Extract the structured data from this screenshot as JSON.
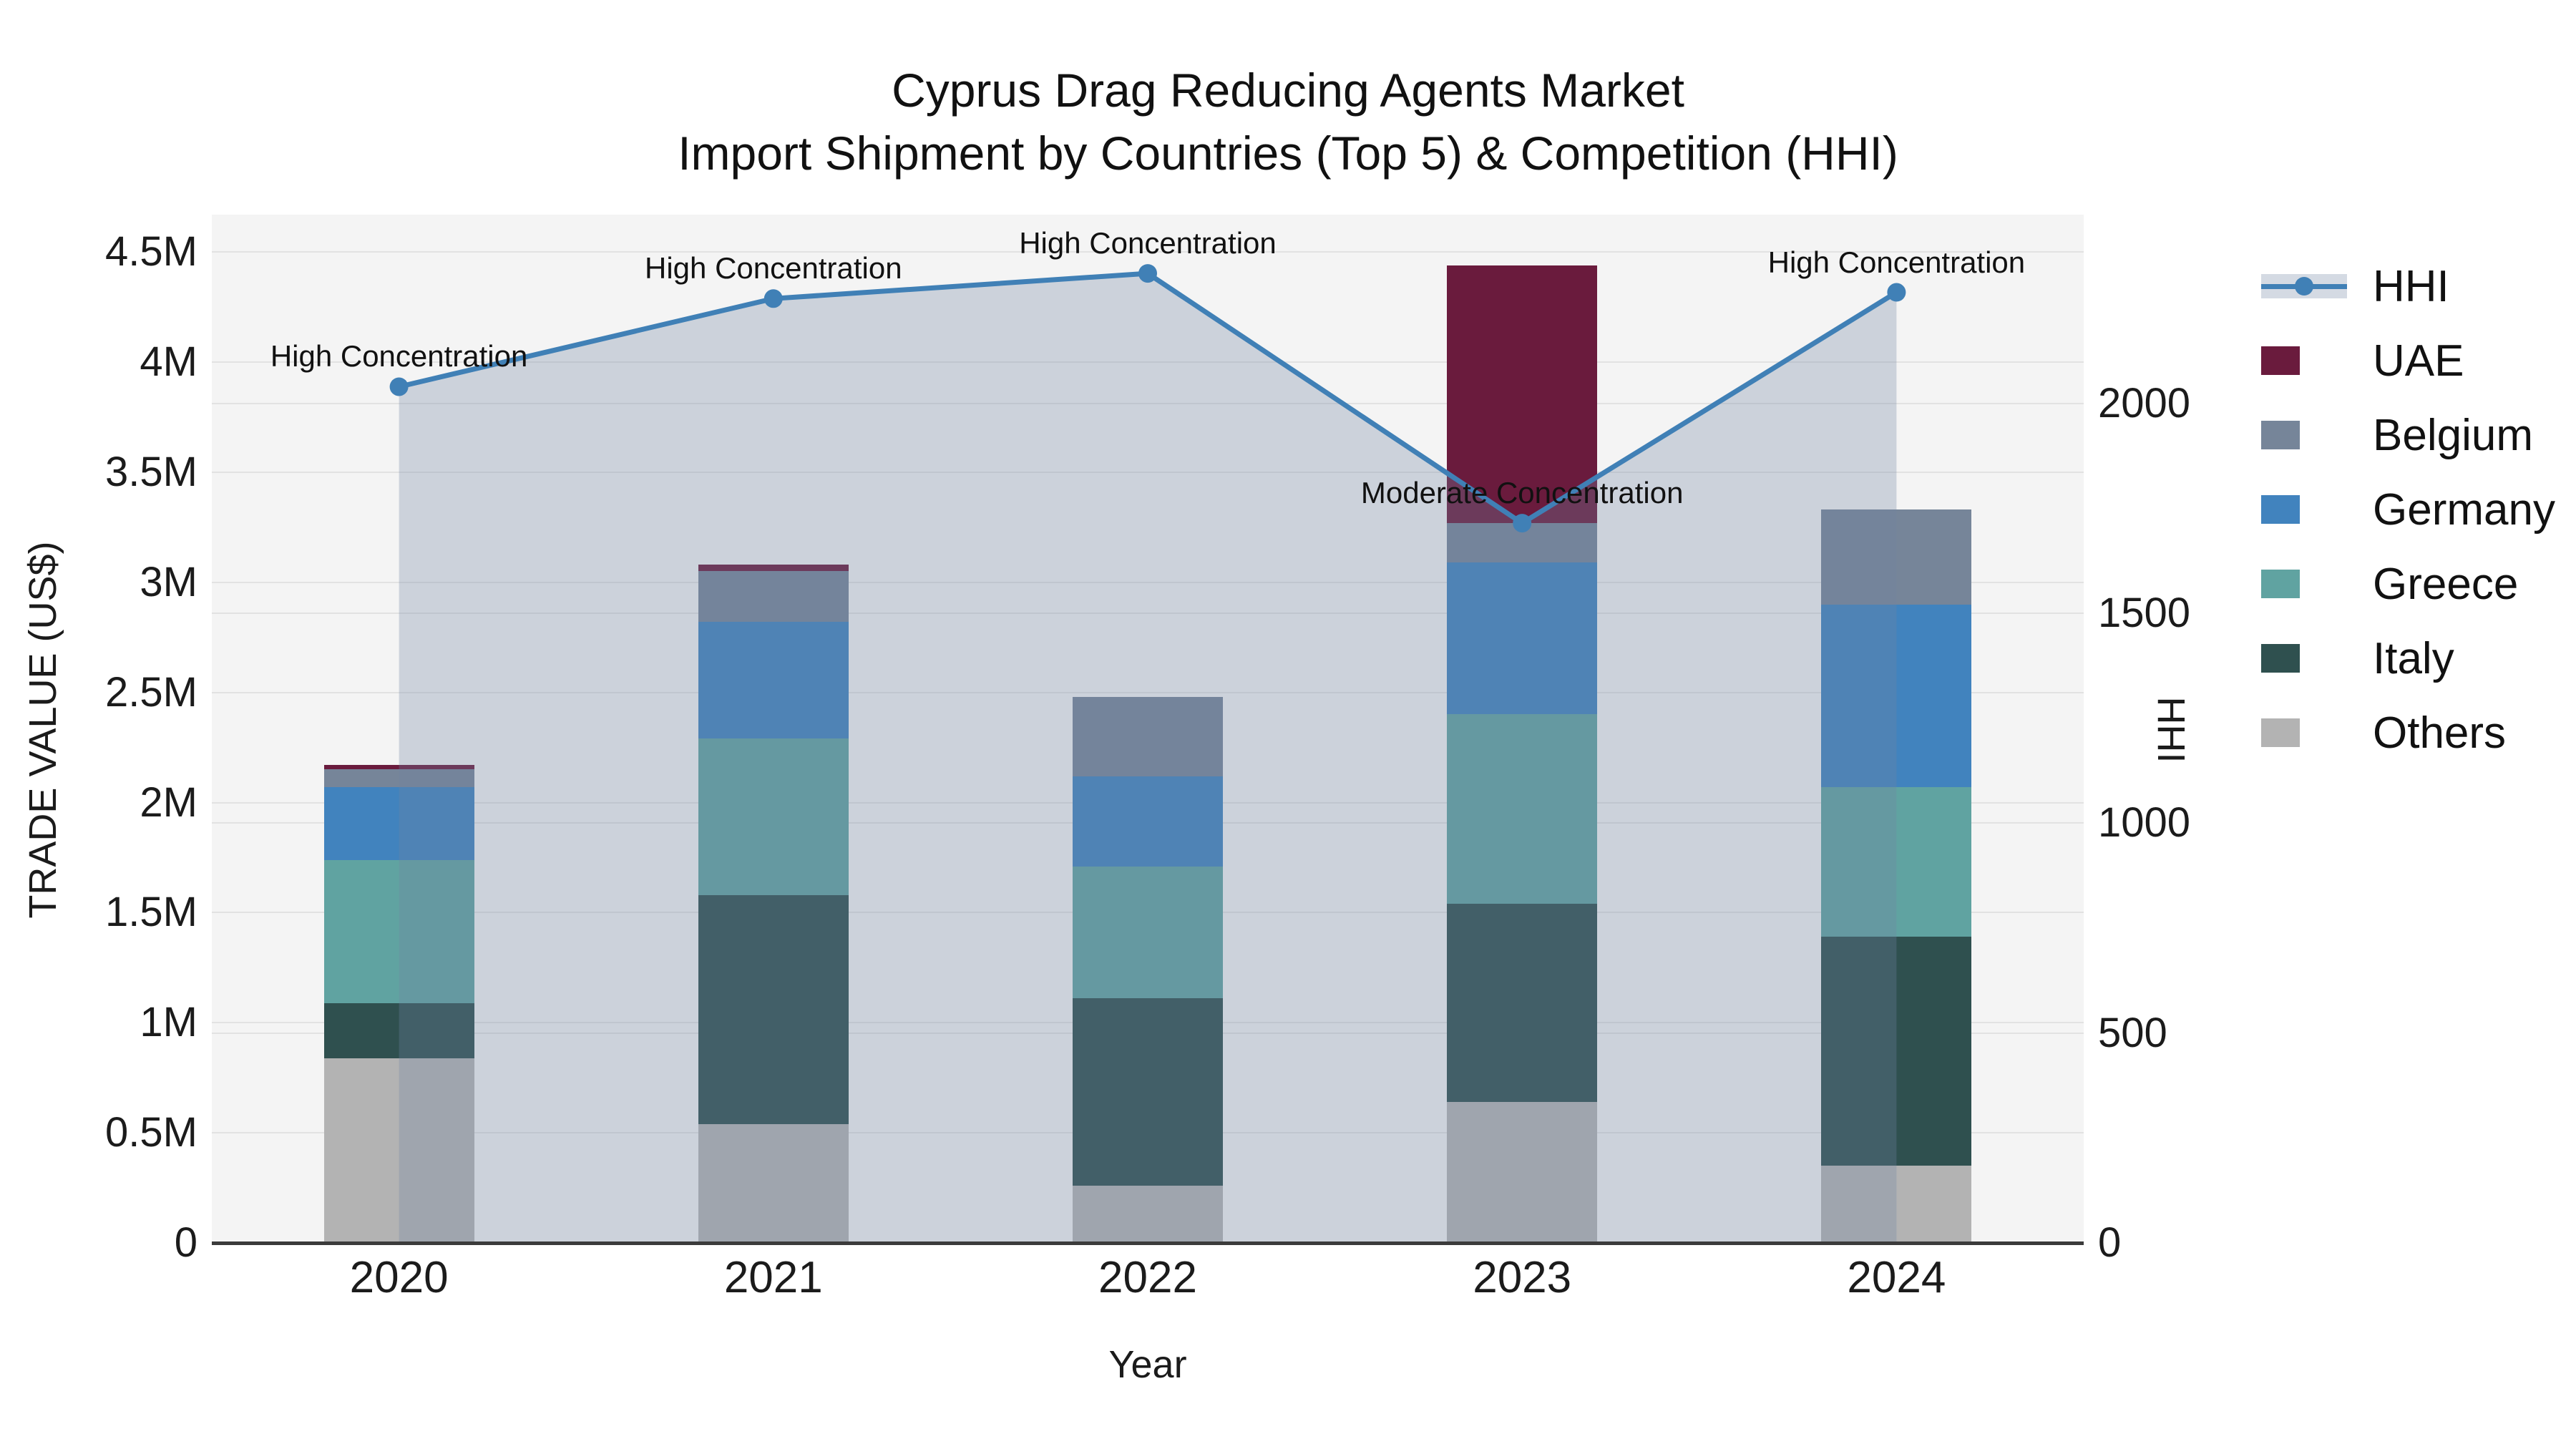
{
  "title": {
    "line1": "Cyprus Drag Reducing Agents Market",
    "line2": "Import Shipment by Countries (Top 5) & Competition (HHI)"
  },
  "axes": {
    "x": {
      "title": "Year"
    },
    "y_left": {
      "title": "TRADE VALUE (US$)",
      "ticks": [
        {
          "v": 0,
          "label": "0"
        },
        {
          "v": 0.5,
          "label": "0.5M"
        },
        {
          "v": 1,
          "label": "1M"
        },
        {
          "v": 1.5,
          "label": "1.5M"
        },
        {
          "v": 2,
          "label": "2M"
        },
        {
          "v": 2.5,
          "label": "2.5M"
        },
        {
          "v": 3,
          "label": "3M"
        },
        {
          "v": 3.5,
          "label": "3.5M"
        },
        {
          "v": 4,
          "label": "4M"
        },
        {
          "v": 4.5,
          "label": "4.5M"
        }
      ]
    },
    "y_right": {
      "title": "HHI",
      "ticks": [
        {
          "v": 0,
          "label": "0"
        },
        {
          "v": 500,
          "label": "500"
        },
        {
          "v": 1000,
          "label": "1000"
        },
        {
          "v": 1500,
          "label": "1500"
        },
        {
          "v": 2000,
          "label": "2000"
        }
      ]
    }
  },
  "colors": {
    "plot_bg": "#f4f4f4",
    "grid": "#e2e2e2",
    "axis_line": "#3b3b3b",
    "hhi_line": "#4080B6",
    "hhi_area_fill": "rgba(114,131,161,0.30)"
  },
  "chart_data": {
    "type": "bar+line (stacked bars, dual y-axis)",
    "categories": [
      "2020",
      "2021",
      "2022",
      "2023",
      "2024"
    ],
    "bar_unit": "million US$",
    "stack_order_bottom_to_top": [
      "Others",
      "Italy",
      "Greece",
      "Germany",
      "Belgium",
      "UAE"
    ],
    "bar_series": [
      {
        "name": "UAE",
        "color": "#6A1B3D",
        "values": [
          0.02,
          0.03,
          0.0,
          1.17,
          0.0
        ]
      },
      {
        "name": "Belgium",
        "color": "#768599",
        "values": [
          0.08,
          0.23,
          0.36,
          0.18,
          0.43
        ]
      },
      {
        "name": "Germany",
        "color": "#4183BE",
        "values": [
          0.33,
          0.53,
          0.41,
          0.69,
          0.83
        ]
      },
      {
        "name": "Greece",
        "color": "#60A3A1",
        "values": [
          0.65,
          0.71,
          0.6,
          0.86,
          0.68
        ]
      },
      {
        "name": "Italy",
        "color": "#2F504F",
        "values": [
          0.25,
          1.04,
          0.85,
          0.9,
          1.04
        ]
      },
      {
        "name": "Others",
        "color": "#B3B3B3",
        "values": [
          0.84,
          0.54,
          0.26,
          0.64,
          0.35
        ]
      }
    ],
    "bar_totals": [
      2.17,
      3.08,
      2.48,
      4.44,
      3.33
    ],
    "line_series": {
      "name": "HHI",
      "axis": "right",
      "values": [
        2040,
        2250,
        2310,
        1715,
        2265
      ]
    },
    "annotations": [
      "High Concentration",
      "High Concentration",
      "High Concentration",
      "Moderate Concentration",
      "High Concentration"
    ],
    "title": "Cyprus Drag Reducing Agents Market — Import Shipment by Countries (Top 5) & Competition (HHI)",
    "xlabel": "Year",
    "ylabel_left": "TRADE VALUE (US$)",
    "ylabel_right": "HHI",
    "left_axis_range": [
      0,
      4.67
    ],
    "right_axis_range": [
      0,
      2450
    ],
    "grid": true,
    "legend_position": "right",
    "legend_order": [
      "HHI",
      "UAE",
      "Belgium",
      "Germany",
      "Greece",
      "Italy",
      "Others"
    ]
  }
}
